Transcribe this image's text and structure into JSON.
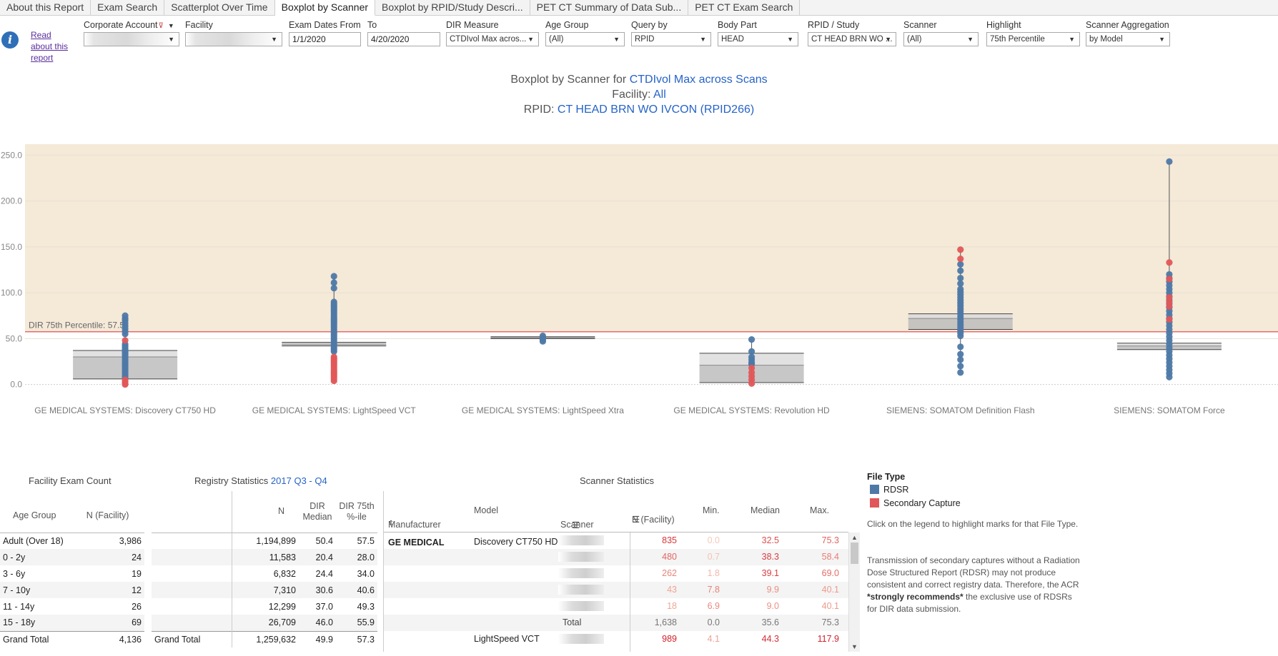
{
  "tabs": [
    {
      "label": "About this Report"
    },
    {
      "label": "Exam Search"
    },
    {
      "label": "Scatterplot Over Time"
    },
    {
      "label": "Boxplot by Scanner"
    },
    {
      "label": "Boxplot by RPID/Study Descri..."
    },
    {
      "label": "PET CT Summary of Data Sub..."
    },
    {
      "label": "PET CT Exam Search"
    }
  ],
  "active_tab": "Boxplot by Scanner",
  "read_about": "Read about this report",
  "filters": {
    "corporate_account": {
      "label": "Corporate Account",
      "value": ""
    },
    "facility": {
      "label": "Facility",
      "value": ""
    },
    "exam_dates_from": {
      "label": "Exam Dates From",
      "value": "1/1/2020"
    },
    "to": {
      "label": "To",
      "value": "4/20/2020"
    },
    "dir_measure": {
      "label": "DIR Measure",
      "value": "CTDIvol Max acros..."
    },
    "age_group": {
      "label": "Age Group",
      "value": "(All)"
    },
    "query_by": {
      "label": "Query by",
      "value": "RPID"
    },
    "body_part": {
      "label": "Body Part",
      "value": "HEAD"
    },
    "rpid_study": {
      "label": "RPID / Study",
      "value": "CT HEAD BRN WO ..."
    },
    "scanner": {
      "label": "Scanner",
      "value": "(All)"
    },
    "highlight": {
      "label": "Highlight",
      "value": "75th Percentile"
    },
    "scanner_aggregation": {
      "label": "Scanner Aggregation",
      "value": "by Model"
    }
  },
  "title": {
    "line1_prefix": "Boxplot by Scanner for ",
    "measure": "CTDIvol Max across Scans",
    "facility_prefix": "Facility: ",
    "facility_value": "All",
    "rpid_prefix": "RPID: ",
    "rpid_value": "CT HEAD BRN WO IVCON (RPID266)"
  },
  "chart_data": {
    "type": "boxplot",
    "ylim": [
      -12,
      262
    ],
    "yticks": [
      0,
      50,
      100,
      150,
      200,
      250
    ],
    "ytick_labels": [
      "0.0",
      "50.0",
      "100.0",
      "150.0",
      "200.0",
      "250.0"
    ],
    "reference_line": {
      "value": 57.5,
      "label": "DIR 75th Percentile: 57.5"
    },
    "series_colors": {
      "RDSR": "#4e79a7",
      "Secondary Capture": "#e15759"
    },
    "categories": [
      {
        "label": "GE MEDICAL SYSTEMS: Discovery CT750 HD",
        "q1": 6,
        "median": 30,
        "q3": 37,
        "whisker_low": 0,
        "whisker_high": 75,
        "rdsr": [
          75,
          72,
          70,
          67,
          64,
          61,
          58,
          55,
          44,
          42,
          40,
          38,
          36,
          35,
          33,
          31,
          29,
          27,
          25,
          23,
          21,
          19,
          17,
          15,
          13,
          11,
          9,
          7
        ],
        "sc": [
          48,
          5,
          3,
          1,
          0
        ]
      },
      {
        "label": "GE MEDICAL SYSTEMS: LightSpeed VCT",
        "q1": 42,
        "median": 44,
        "q3": 46,
        "whisker_low": 3,
        "whisker_high": 118,
        "rdsr": [
          118,
          111,
          105,
          90,
          88,
          86,
          84,
          82,
          80,
          78,
          76,
          74,
          72,
          70,
          68,
          66,
          64,
          62,
          60,
          58,
          56,
          54,
          52,
          50,
          48,
          46,
          44,
          42,
          40,
          38,
          36
        ],
        "sc": [
          30,
          28,
          26,
          24,
          22,
          20,
          18,
          16,
          14,
          12,
          10,
          8,
          6,
          4
        ]
      },
      {
        "label": "GE MEDICAL SYSTEMS: LightSpeed Xtra",
        "q1": 50,
        "median": 51,
        "q3": 52,
        "whisker_low": 47,
        "whisker_high": 53,
        "rdsr": [
          53,
          51,
          49,
          47
        ],
        "sc": []
      },
      {
        "label": "GE MEDICAL SYSTEMS: Revolution HD",
        "q1": 2,
        "median": 21,
        "q3": 34,
        "whisker_low": 0,
        "whisker_high": 49,
        "rdsr": [
          49,
          36,
          30,
          27,
          24,
          22
        ],
        "sc": [
          18,
          13,
          9,
          5,
          1
        ]
      },
      {
        "label": "SIEMENS: SOMATOM Definition Flash",
        "q1": 60,
        "median": 72,
        "q3": 77,
        "whisker_low": 12,
        "whisker_high": 147,
        "rdsr": [
          131,
          124,
          116,
          110,
          104,
          101,
          98,
          95,
          92,
          89,
          86,
          83,
          80,
          77,
          74,
          71,
          68,
          65,
          62,
          59,
          56,
          53,
          41,
          33,
          27,
          20,
          13
        ],
        "sc": [
          147,
          137
        ]
      },
      {
        "label": "SIEMENS: SOMATOM Force",
        "q1": 38,
        "median": 42,
        "q3": 45,
        "whisker_low": 8,
        "whisker_high": 243,
        "rdsr": [
          243,
          120,
          116,
          112,
          108,
          104,
          100,
          96,
          92,
          88,
          84,
          80,
          76,
          72,
          68,
          64,
          60,
          56,
          52,
          48,
          44,
          40,
          36,
          32,
          28,
          24,
          20,
          16,
          12,
          8
        ],
        "sc": [
          133,
          115,
          95,
          90,
          85,
          71
        ]
      }
    ]
  },
  "facility_exam_count": {
    "title": "Facility Exam Count",
    "headers": {
      "age_group": "Age Group",
      "n": "N (Facility)"
    },
    "rows": [
      {
        "age": "Adult (Over 18)",
        "n": "3,986"
      },
      {
        "age": "0 - 2y",
        "n": "24"
      },
      {
        "age": "3 - 6y",
        "n": "19"
      },
      {
        "age": "7 - 10y",
        "n": "12"
      },
      {
        "age": "11 - 14y",
        "n": "26"
      },
      {
        "age": "15 - 18y",
        "n": "69"
      }
    ],
    "total": {
      "age": "Grand Total",
      "n": "4,136"
    }
  },
  "registry_statistics": {
    "title": "Registry Statistics ",
    "period": "2017 Q3 - Q4",
    "headers": {
      "n": "N",
      "median": "DIR Median",
      "p75": "DIR 75th %-ile"
    },
    "rows": [
      {
        "n": "1,194,899",
        "median": "50.4",
        "p75": "57.5"
      },
      {
        "n": "11,583",
        "median": "20.4",
        "p75": "28.0"
      },
      {
        "n": "6,832",
        "median": "24.4",
        "p75": "34.0"
      },
      {
        "n": "7,310",
        "median": "30.6",
        "p75": "40.6"
      },
      {
        "n": "12,299",
        "median": "37.0",
        "p75": "49.3"
      },
      {
        "n": "26,709",
        "median": "46.0",
        "p75": "55.9"
      }
    ],
    "total": {
      "label": "Grand Total",
      "n": "1,259,632",
      "median": "49.9",
      "p75": "57.3"
    }
  },
  "scanner_statistics": {
    "title": "Scanner Statistics",
    "headers": {
      "manufacturer": "Manufacturer",
      "model": "Model",
      "scanner": "Scanner",
      "n": "N (Facility)",
      "min": "Min.",
      "median": "Median",
      "max": "Max."
    },
    "manufacturer": "GE MEDICAL SYSTEMS",
    "model1": "Discovery CT750 HD",
    "rows": [
      {
        "n": "835",
        "min": "0.0",
        "median": "32.5",
        "max": "75.3"
      },
      {
        "n": "480",
        "min": "0.7",
        "median": "38.3",
        "max": "58.4"
      },
      {
        "n": "262",
        "min": "1.8",
        "median": "39.1",
        "max": "69.0"
      },
      {
        "n": "43",
        "min": "7.8",
        "median": "9.9",
        "max": "40.1"
      },
      {
        "n": "18",
        "min": "6.9",
        "median": "9.0",
        "max": "40.1"
      }
    ],
    "total": {
      "label": "Total",
      "n": "1,638",
      "min": "0.0",
      "median": "35.6",
      "max": "75.3"
    },
    "model2": "LightSpeed VCT",
    "row_next": {
      "n": "989",
      "min": "4.1",
      "median": "44.3",
      "max": "117.9"
    }
  },
  "legend": {
    "title": "File Type",
    "items": [
      {
        "label": "RDSR",
        "color": "#4e79a7"
      },
      {
        "label": "Secondary Capture",
        "color": "#e15759"
      }
    ]
  },
  "notes": {
    "click_hint": "Click on the legend to highlight marks for that File Type.",
    "warning_pre": "Transmission of secondary captures without a Radiation Dose Structured Report (RDSR) may not produce consistent and correct registry data. Therefore, the ACR ",
    "warning_strong": "*strongly recommends*",
    "warning_post": " the exclusive use of RDSRs for DIR data submission."
  }
}
